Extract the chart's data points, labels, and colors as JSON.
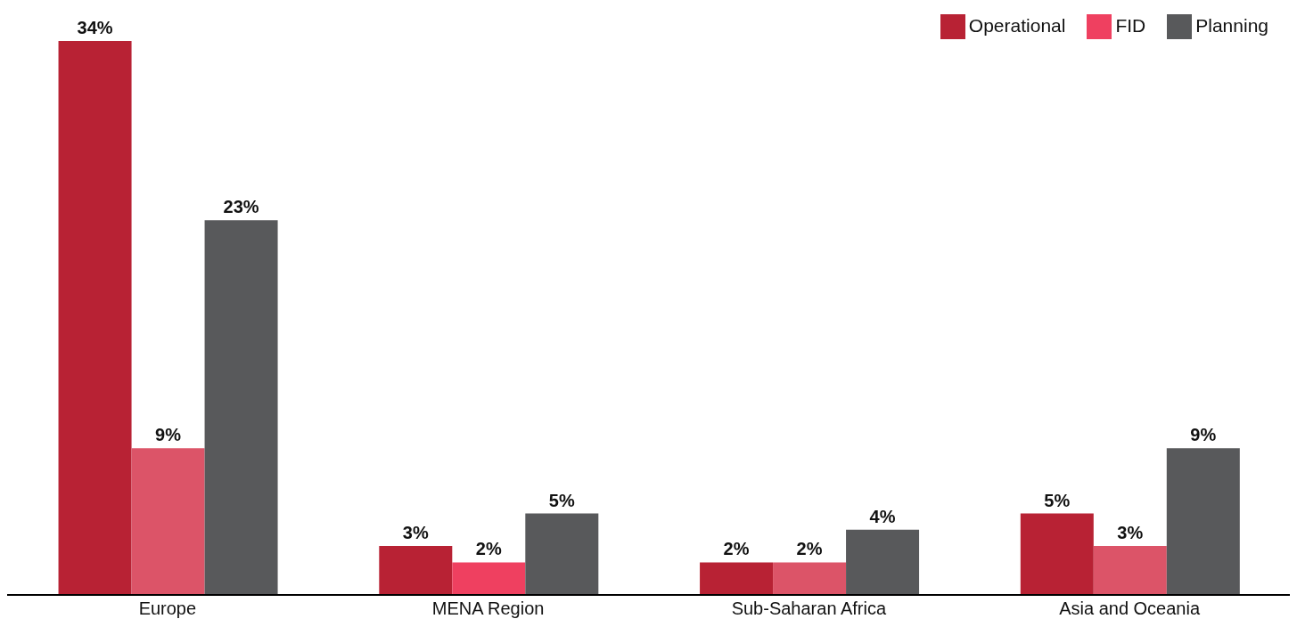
{
  "chart_data": {
    "type": "bar",
    "categories": [
      "Europe",
      "MENA Region",
      "Sub-Saharan Africa",
      "Asia and Oceania"
    ],
    "series": [
      {
        "name": "Operational",
        "color": "#b82234",
        "values": [
          34,
          3,
          2,
          5
        ],
        "value_labels": [
          "34%",
          "3%",
          "2%",
          "5%"
        ]
      },
      {
        "name": "FID",
        "color": "#ef4060",
        "colors": [
          "#dc5468",
          "#ef4060",
          "#dc5468",
          "#dc5468"
        ],
        "values": [
          9,
          2,
          2,
          3
        ],
        "value_labels": [
          "9%",
          "2%",
          "2%",
          "3%"
        ]
      },
      {
        "name": "Planning",
        "color": "#58595b",
        "values": [
          23,
          5,
          4,
          9
        ],
        "value_labels": [
          "23%",
          "5%",
          "4%",
          "9%"
        ]
      }
    ],
    "legend": "top right",
    "grid": false,
    "tick_labels": "x"
  }
}
